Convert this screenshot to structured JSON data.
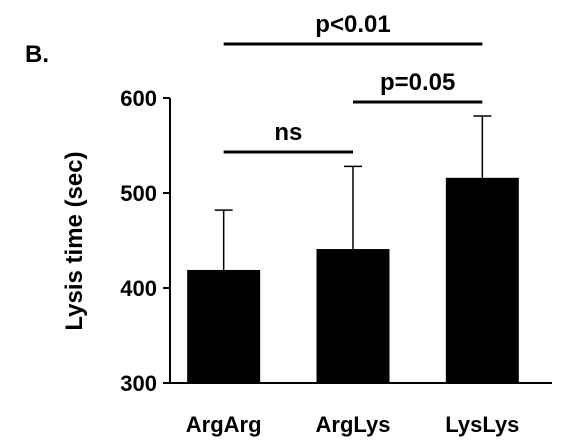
{
  "panel_label": "B.",
  "chart_data": {
    "type": "bar",
    "categories": [
      "ArgArg",
      "ArgLys",
      "LysLys"
    ],
    "values": [
      419,
      441,
      516
    ],
    "error_upper": [
      482,
      528,
      581
    ],
    "ylabel": "Lysis time (sec)",
    "xlabel": "",
    "ylim": [
      300,
      600
    ],
    "yticks": [
      300,
      400,
      500,
      600
    ],
    "grid": false,
    "bar_color": "#000000",
    "annotations": [
      {
        "text": "ns",
        "from": 0,
        "to": 1
      },
      {
        "text": "p=0.05",
        "from": 1,
        "to": 2
      },
      {
        "text": "p<0.01",
        "from": 0,
        "to": 2
      }
    ]
  }
}
